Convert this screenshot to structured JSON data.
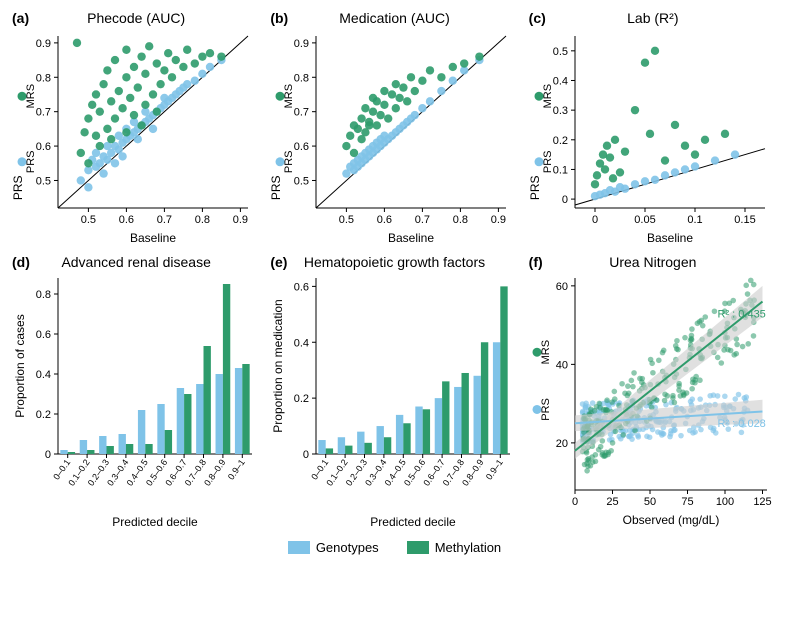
{
  "colors": {
    "prs": "#7fc3e8",
    "mrs": "#2e9b6b",
    "prs_trans": "rgba(127,195,232,0.65)",
    "mrs_trans": "rgba(46,155,107,0.55)",
    "axis": "#000000",
    "bg": "#ffffff",
    "ci": "#cccccc"
  },
  "legend": {
    "prs": "Genotypes",
    "mrs": "Methylation"
  },
  "panels": {
    "a": {
      "label": "(a)",
      "title": "Phecode (AUC)",
      "xlabel": "Baseline",
      "ylabel_top": "MRS",
      "ylabel_bot": "PRS",
      "xlim": [
        0.42,
        0.92
      ],
      "ylim": [
        0.42,
        0.92
      ],
      "xticks": [
        0.5,
        0.6,
        0.7,
        0.8,
        0.9
      ],
      "yticks": [
        0.5,
        0.6,
        0.7,
        0.8,
        0.9
      ],
      "prs": [
        [
          0.48,
          0.5
        ],
        [
          0.5,
          0.53
        ],
        [
          0.51,
          0.56
        ],
        [
          0.52,
          0.54
        ],
        [
          0.52,
          0.58
        ],
        [
          0.53,
          0.55
        ],
        [
          0.54,
          0.57
        ],
        [
          0.55,
          0.56
        ],
        [
          0.55,
          0.6
        ],
        [
          0.56,
          0.58
        ],
        [
          0.57,
          0.6
        ],
        [
          0.58,
          0.59
        ],
        [
          0.58,
          0.63
        ],
        [
          0.59,
          0.61
        ],
        [
          0.6,
          0.62
        ],
        [
          0.6,
          0.65
        ],
        [
          0.61,
          0.63
        ],
        [
          0.62,
          0.64
        ],
        [
          0.62,
          0.67
        ],
        [
          0.63,
          0.65
        ],
        [
          0.64,
          0.66
        ],
        [
          0.65,
          0.67
        ],
        [
          0.65,
          0.7
        ],
        [
          0.66,
          0.68
        ],
        [
          0.67,
          0.69
        ],
        [
          0.68,
          0.7
        ],
        [
          0.69,
          0.71
        ],
        [
          0.7,
          0.72
        ],
        [
          0.7,
          0.74
        ],
        [
          0.71,
          0.73
        ],
        [
          0.72,
          0.74
        ],
        [
          0.73,
          0.75
        ],
        [
          0.74,
          0.76
        ],
        [
          0.75,
          0.77
        ],
        [
          0.76,
          0.78
        ],
        [
          0.78,
          0.79
        ],
        [
          0.8,
          0.81
        ],
        [
          0.82,
          0.83
        ],
        [
          0.85,
          0.85
        ],
        [
          0.57,
          0.55
        ],
        [
          0.63,
          0.62
        ],
        [
          0.67,
          0.65
        ],
        [
          0.5,
          0.48
        ],
        [
          0.54,
          0.52
        ],
        [
          0.59,
          0.57
        ]
      ],
      "mrs": [
        [
          0.48,
          0.58
        ],
        [
          0.49,
          0.64
        ],
        [
          0.5,
          0.68
        ],
        [
          0.51,
          0.72
        ],
        [
          0.52,
          0.63
        ],
        [
          0.52,
          0.75
        ],
        [
          0.53,
          0.7
        ],
        [
          0.54,
          0.78
        ],
        [
          0.55,
          0.65
        ],
        [
          0.55,
          0.82
        ],
        [
          0.56,
          0.73
        ],
        [
          0.57,
          0.68
        ],
        [
          0.57,
          0.85
        ],
        [
          0.58,
          0.76
        ],
        [
          0.59,
          0.71
        ],
        [
          0.6,
          0.8
        ],
        [
          0.6,
          0.88
        ],
        [
          0.61,
          0.74
        ],
        [
          0.62,
          0.69
        ],
        [
          0.62,
          0.83
        ],
        [
          0.63,
          0.77
        ],
        [
          0.64,
          0.86
        ],
        [
          0.65,
          0.72
        ],
        [
          0.65,
          0.81
        ],
        [
          0.66,
          0.89
        ],
        [
          0.67,
          0.75
        ],
        [
          0.68,
          0.84
        ],
        [
          0.69,
          0.78
        ],
        [
          0.7,
          0.82
        ],
        [
          0.71,
          0.87
        ],
        [
          0.72,
          0.8
        ],
        [
          0.73,
          0.85
        ],
        [
          0.75,
          0.83
        ],
        [
          0.76,
          0.88
        ],
        [
          0.78,
          0.84
        ],
        [
          0.8,
          0.86
        ],
        [
          0.82,
          0.87
        ],
        [
          0.85,
          0.86
        ],
        [
          0.5,
          0.55
        ],
        [
          0.53,
          0.6
        ],
        [
          0.56,
          0.62
        ],
        [
          0.6,
          0.64
        ],
        [
          0.64,
          0.66
        ],
        [
          0.68,
          0.7
        ],
        [
          0.47,
          0.9
        ]
      ]
    },
    "b": {
      "label": "(b)",
      "title": "Medication (AUC)",
      "xlabel": "Baseline",
      "ylabel_top": "MRS",
      "ylabel_bot": "PRS",
      "xlim": [
        0.42,
        0.92
      ],
      "ylim": [
        0.42,
        0.92
      ],
      "xticks": [
        0.5,
        0.6,
        0.7,
        0.8,
        0.9
      ],
      "yticks": [
        0.5,
        0.6,
        0.7,
        0.8,
        0.9
      ],
      "prs": [
        [
          0.5,
          0.52
        ],
        [
          0.51,
          0.54
        ],
        [
          0.52,
          0.55
        ],
        [
          0.53,
          0.56
        ],
        [
          0.54,
          0.57
        ],
        [
          0.55,
          0.58
        ],
        [
          0.56,
          0.59
        ],
        [
          0.57,
          0.6
        ],
        [
          0.58,
          0.61
        ],
        [
          0.59,
          0.62
        ],
        [
          0.6,
          0.63
        ],
        [
          0.52,
          0.53
        ],
        [
          0.53,
          0.54
        ],
        [
          0.54,
          0.55
        ],
        [
          0.55,
          0.56
        ],
        [
          0.56,
          0.57
        ],
        [
          0.57,
          0.58
        ],
        [
          0.58,
          0.59
        ],
        [
          0.59,
          0.6
        ],
        [
          0.6,
          0.61
        ],
        [
          0.61,
          0.62
        ],
        [
          0.62,
          0.63
        ],
        [
          0.63,
          0.64
        ],
        [
          0.64,
          0.65
        ],
        [
          0.65,
          0.66
        ],
        [
          0.66,
          0.67
        ],
        [
          0.67,
          0.68
        ],
        [
          0.68,
          0.69
        ],
        [
          0.7,
          0.71
        ],
        [
          0.72,
          0.73
        ],
        [
          0.75,
          0.76
        ],
        [
          0.78,
          0.79
        ],
        [
          0.81,
          0.82
        ],
        [
          0.85,
          0.85
        ]
      ],
      "mrs": [
        [
          0.5,
          0.6
        ],
        [
          0.51,
          0.63
        ],
        [
          0.52,
          0.66
        ],
        [
          0.53,
          0.65
        ],
        [
          0.54,
          0.68
        ],
        [
          0.55,
          0.64
        ],
        [
          0.55,
          0.71
        ],
        [
          0.56,
          0.67
        ],
        [
          0.57,
          0.7
        ],
        [
          0.57,
          0.74
        ],
        [
          0.58,
          0.66
        ],
        [
          0.58,
          0.73
        ],
        [
          0.59,
          0.69
        ],
        [
          0.6,
          0.72
        ],
        [
          0.6,
          0.76
        ],
        [
          0.61,
          0.68
        ],
        [
          0.62,
          0.75
        ],
        [
          0.63,
          0.71
        ],
        [
          0.63,
          0.78
        ],
        [
          0.64,
          0.74
        ],
        [
          0.65,
          0.77
        ],
        [
          0.66,
          0.73
        ],
        [
          0.67,
          0.8
        ],
        [
          0.68,
          0.76
        ],
        [
          0.7,
          0.79
        ],
        [
          0.72,
          0.82
        ],
        [
          0.75,
          0.8
        ],
        [
          0.78,
          0.83
        ],
        [
          0.81,
          0.84
        ],
        [
          0.85,
          0.86
        ],
        [
          0.52,
          0.58
        ],
        [
          0.54,
          0.62
        ],
        [
          0.56,
          0.66
        ]
      ]
    },
    "c": {
      "label": "(c)",
      "title": "Lab (R²)",
      "xlabel": "Baseline",
      "ylabel_top": "MRS",
      "ylabel_bot": "PRS",
      "xlim": [
        -0.02,
        0.17
      ],
      "ylim": [
        -0.03,
        0.55
      ],
      "xticks": [
        0.0,
        0.05,
        0.1,
        0.15
      ],
      "yticks": [
        0.0,
        0.1,
        0.2,
        0.3,
        0.4,
        0.5
      ],
      "prs": [
        [
          0.0,
          0.01
        ],
        [
          0.005,
          0.015
        ],
        [
          0.01,
          0.02
        ],
        [
          0.015,
          0.03
        ],
        [
          0.02,
          0.025
        ],
        [
          0.025,
          0.04
        ],
        [
          0.03,
          0.035
        ],
        [
          0.04,
          0.05
        ],
        [
          0.05,
          0.06
        ],
        [
          0.06,
          0.065
        ],
        [
          0.07,
          0.08
        ],
        [
          0.08,
          0.09
        ],
        [
          0.09,
          0.1
        ],
        [
          0.1,
          0.11
        ],
        [
          0.12,
          0.13
        ],
        [
          0.14,
          0.15
        ]
      ],
      "mrs": [
        [
          0.0,
          0.05
        ],
        [
          0.002,
          0.08
        ],
        [
          0.005,
          0.12
        ],
        [
          0.008,
          0.15
        ],
        [
          0.01,
          0.1
        ],
        [
          0.012,
          0.18
        ],
        [
          0.015,
          0.14
        ],
        [
          0.018,
          0.07
        ],
        [
          0.02,
          0.2
        ],
        [
          0.025,
          0.09
        ],
        [
          0.03,
          0.16
        ],
        [
          0.04,
          0.3
        ],
        [
          0.05,
          0.46
        ],
        [
          0.055,
          0.22
        ],
        [
          0.06,
          0.5
        ],
        [
          0.07,
          0.13
        ],
        [
          0.08,
          0.25
        ],
        [
          0.09,
          0.18
        ],
        [
          0.1,
          0.15
        ],
        [
          0.11,
          0.2
        ],
        [
          0.13,
          0.22
        ]
      ]
    },
    "d": {
      "label": "(d)",
      "title": "Advanced renal disease",
      "xlabel": "Predicted decile",
      "ylabel": "Proportion of cases",
      "ylim": [
        0,
        0.88
      ],
      "yticks": [
        0,
        0.2,
        0.4,
        0.6,
        0.8
      ],
      "categories": [
        "0–0.1",
        "0.1–0.2",
        "0.2–0.3",
        "0.3–0.4",
        "0.4–0.5",
        "0.5–0.6",
        "0.6–0.7",
        "0.7–0.8",
        "0.8–0.9",
        "0.9–1"
      ],
      "prs": [
        0.02,
        0.07,
        0.09,
        0.1,
        0.22,
        0.25,
        0.33,
        0.35,
        0.4,
        0.43
      ],
      "mrs": [
        0.01,
        0.02,
        0.04,
        0.05,
        0.05,
        0.12,
        0.3,
        0.54,
        0.85,
        0.45
      ]
    },
    "e": {
      "label": "(e)",
      "title": "Hematopoietic growth factors",
      "xlabel": "Predicted decile",
      "ylabel": "Proportion on medication",
      "ylim": [
        0,
        0.63
      ],
      "yticks": [
        0,
        0.2,
        0.4,
        0.6
      ],
      "categories": [
        "0–0.1",
        "0.1–0.2",
        "0.2–0.3",
        "0.3–0.4",
        "0.4–0.5",
        "0.5–0.6",
        "0.6–0.7",
        "0.7–0.8",
        "0.8–0.9",
        "0.9–1"
      ],
      "prs": [
        0.05,
        0.06,
        0.08,
        0.1,
        0.14,
        0.17,
        0.2,
        0.24,
        0.28,
        0.4
      ],
      "mrs": [
        0.02,
        0.03,
        0.04,
        0.06,
        0.11,
        0.16,
        0.26,
        0.29,
        0.4,
        0.6
      ]
    },
    "f": {
      "label": "(f)",
      "title": "Urea Nitrogen",
      "xlabel": "Observed (mg/dL)",
      "ylabel_top": "MRS",
      "ylabel_bot": "PRS",
      "xlim": [
        0,
        128
      ],
      "ylim": [
        8,
        62
      ],
      "xticks": [
        0,
        25,
        50,
        75,
        100,
        125
      ],
      "yticks": [
        20,
        40,
        60
      ],
      "r2_mrs": "R² : 0.435",
      "r2_prs": "R² : 0.028",
      "prs_line": [
        [
          0,
          25
        ],
        [
          125,
          28
        ]
      ],
      "mrs_line": [
        [
          0,
          18
        ],
        [
          125,
          56
        ]
      ]
    }
  }
}
